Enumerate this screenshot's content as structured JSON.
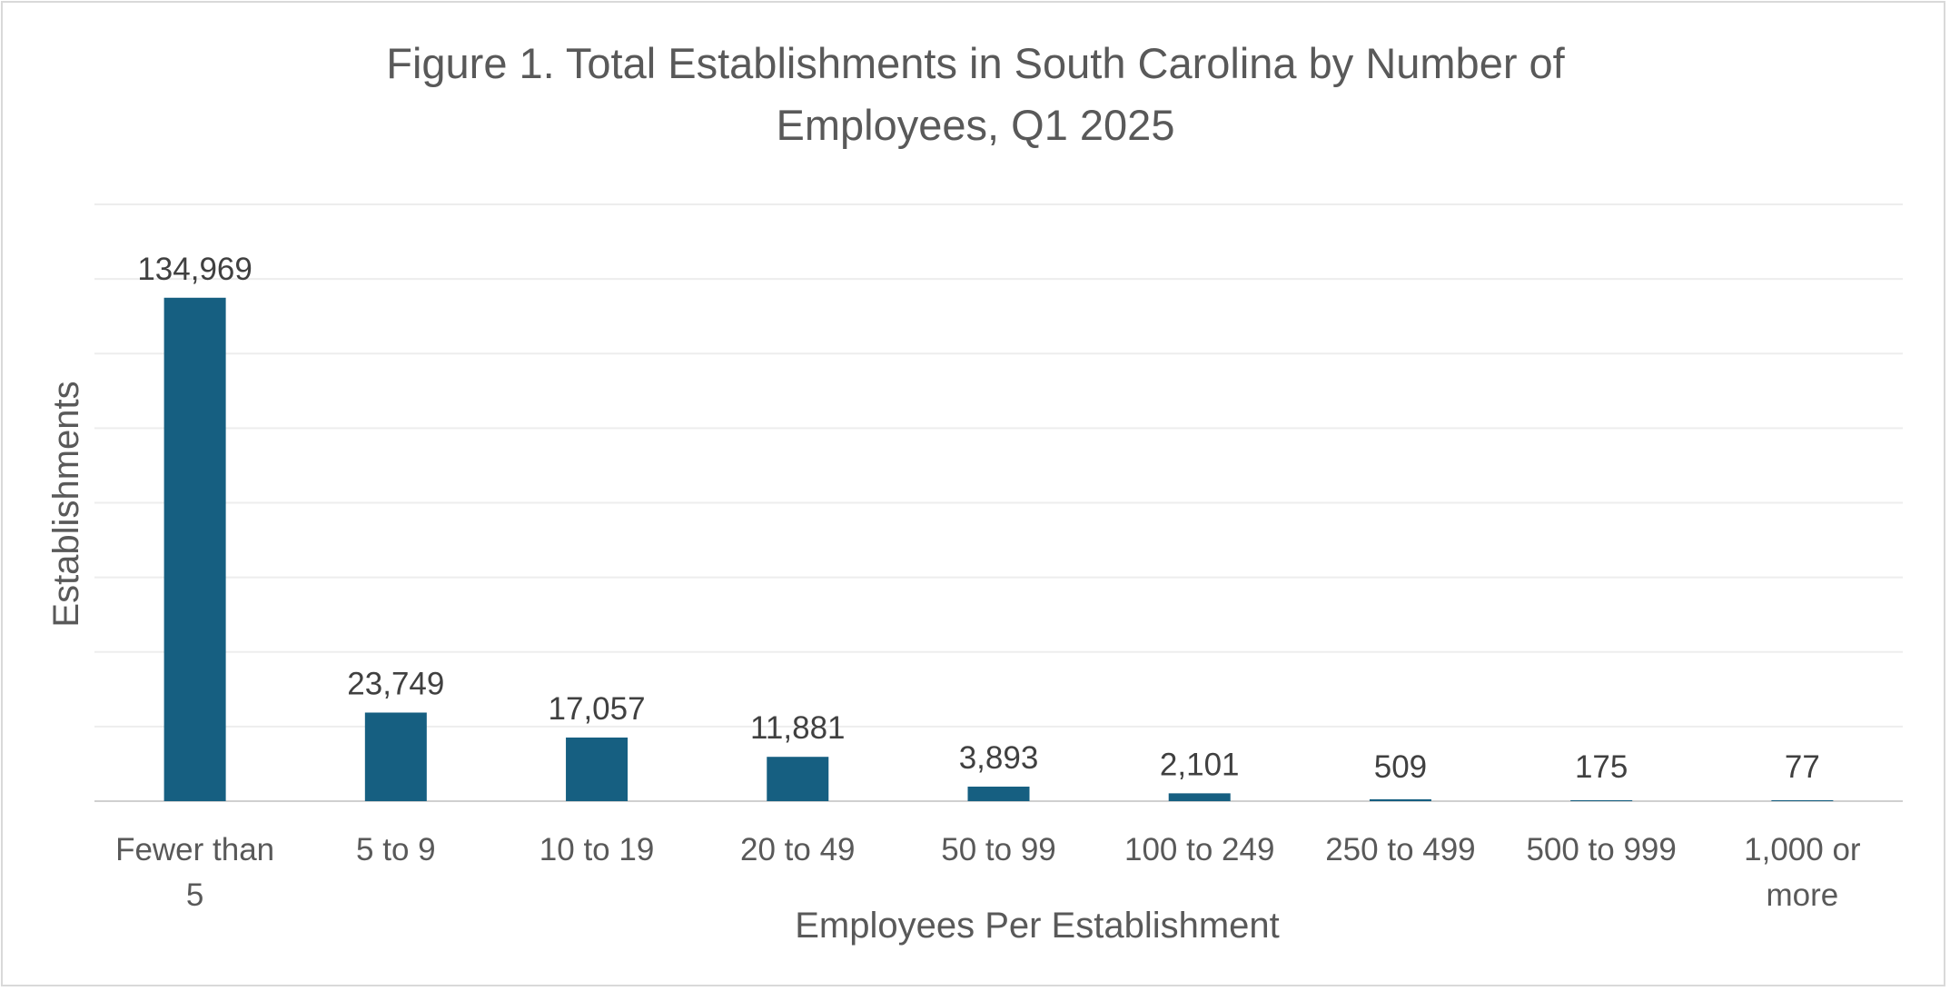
{
  "chart_data": {
    "type": "bar",
    "title_lines": [
      "Figure 1. Total Establishments in South Carolina by Number of",
      "Employees, Q1 2025"
    ],
    "xlabel": "Employees Per Establishment",
    "ylabel": "Establishments",
    "categories": [
      [
        "Fewer than",
        "5"
      ],
      [
        "5 to 9"
      ],
      [
        "10 to 19"
      ],
      [
        "20 to 49"
      ],
      [
        "50 to 99"
      ],
      [
        "100 to 249"
      ],
      [
        "250 to 499"
      ],
      [
        "500 to 999"
      ],
      [
        "1,000 or",
        "more"
      ]
    ],
    "values": [
      134969,
      23749,
      17057,
      11881,
      3893,
      2101,
      509,
      175,
      77
    ],
    "data_labels": [
      "134,969",
      "23,749",
      "17,057",
      "11,881",
      "3,893",
      "2,101",
      "509",
      "175",
      "77"
    ],
    "ylim": [
      0,
      160000
    ],
    "grid": true,
    "gridline_count": 8,
    "legend": "none",
    "bar_color": "#165f81",
    "gridline_color": "#ededed",
    "axis_color": "#d0d0d0",
    "text_color": "#595959"
  }
}
